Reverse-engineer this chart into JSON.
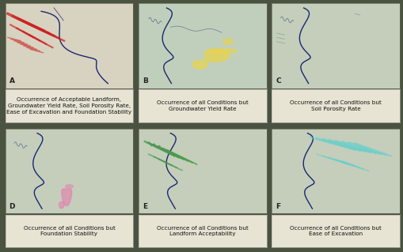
{
  "background_color": "#4a5240",
  "panel_bg_A": "#ddd8c8",
  "panel_bg_BCD": "#c8d4c0",
  "panel_bg_EF": "#c8d4c0",
  "panel_label_bg": "#e8e4d4",
  "fig_width": 5.1,
  "fig_height": 3.19,
  "panels": [
    {
      "label": "A",
      "caption_lines": [
        "Occurrence of Acceptable Landform,",
        "Groundwater Yield Rate, Soil Porosity Rate,",
        "Ease of Excavation and Foundation Stability"
      ],
      "highlight_color": "#cc2222",
      "bg": "#d8d2c0"
    },
    {
      "label": "B",
      "caption_lines": [
        "Occurrence of all Conditions but",
        "Groundwater Yield Rate"
      ],
      "highlight_color": "#e8d44d",
      "bg": "#c0cebc"
    },
    {
      "label": "C",
      "caption_lines": [
        "Occurrence of all Conditions but",
        "Soil Porosity Rate"
      ],
      "highlight_color": null,
      "bg": "#c4cebb"
    },
    {
      "label": "D",
      "caption_lines": [
        "Occurrence of all Conditions but",
        "Foundation Stability"
      ],
      "highlight_color": "#e87aaa",
      "bg": "#c4cebb"
    },
    {
      "label": "E",
      "caption_lines": [
        "Occurrence of all Conditions but",
        "Landform Acceptability"
      ],
      "highlight_color": "#4a9a4a",
      "bg": "#c4cebb"
    },
    {
      "label": "F",
      "caption_lines": [
        "Occurrence of all Conditions but",
        "Ease of Excavation"
      ],
      "highlight_color": "#5acece",
      "bg": "#c4cebb"
    }
  ],
  "river_color": "#1a2870",
  "caption_fontsize": 5.2,
  "label_fontsize": 6.5
}
